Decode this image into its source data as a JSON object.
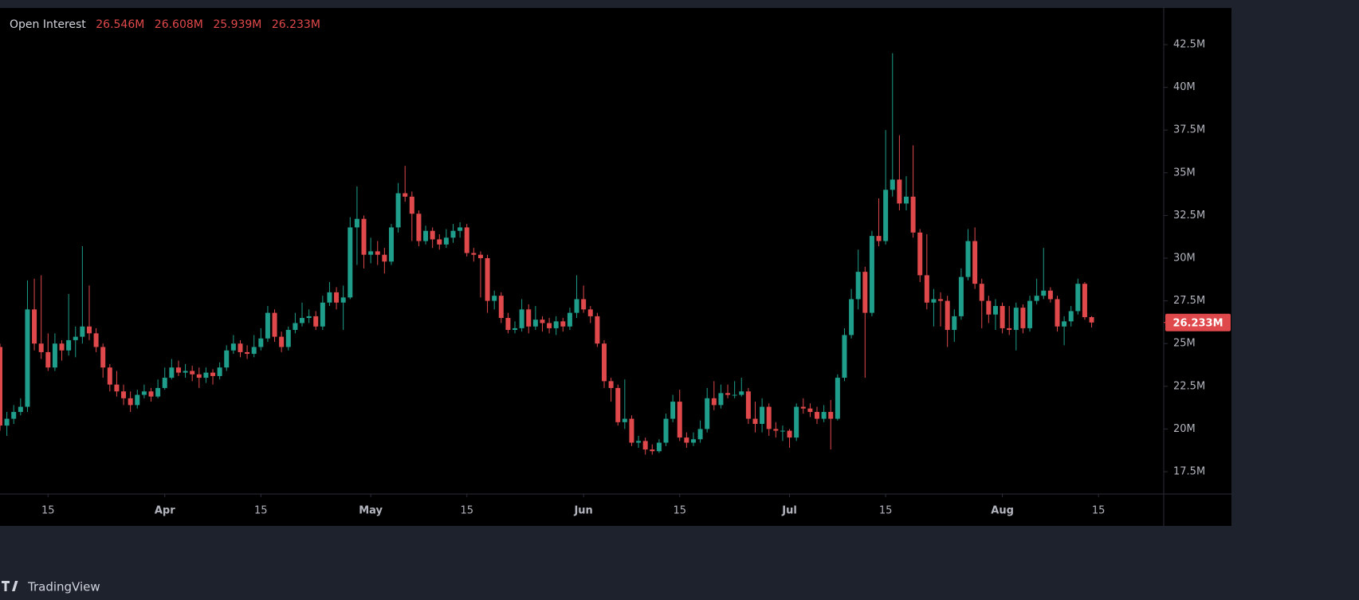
{
  "chart_data": {
    "type": "candlestick",
    "title": "Open Interest",
    "ohlc_labels": [
      "26.546M",
      "26.608M",
      "25.939M",
      "26.233M"
    ],
    "last_price_label": "26.233M",
    "watermark": "TradingView",
    "up_color": "#1f9e8b",
    "down_color": "#e0494b",
    "xlim": [
      0,
      169.5
    ],
    "xticks": [
      {
        "value": 7,
        "label": "15"
      },
      {
        "value": 24,
        "label": "Apr"
      },
      {
        "value": 38,
        "label": "15"
      },
      {
        "value": 54,
        "label": "May"
      },
      {
        "value": 68,
        "label": "15"
      },
      {
        "value": 85,
        "label": "Jun"
      },
      {
        "value": 99,
        "label": "15"
      },
      {
        "value": 115,
        "label": "Jul"
      },
      {
        "value": 129,
        "label": "15"
      },
      {
        "value": 146,
        "label": "Aug"
      },
      {
        "value": 160,
        "label": "15"
      }
    ],
    "ylim": [
      16.194,
      44.645
    ],
    "yticks": [
      {
        "value": 17.5,
        "label": "17.5M"
      },
      {
        "value": 20,
        "label": "20M"
      },
      {
        "value": 22.5,
        "label": "22.5M"
      },
      {
        "value": 25,
        "label": "25M"
      },
      {
        "value": 27.5,
        "label": "27.5M"
      },
      {
        "value": 30,
        "label": "30M"
      },
      {
        "value": 32.5,
        "label": "32.5M"
      },
      {
        "value": 35,
        "label": "35M"
      },
      {
        "value": 37.5,
        "label": "37.5M"
      },
      {
        "value": 40,
        "label": "40M"
      },
      {
        "value": 42.5,
        "label": "42.5M"
      }
    ],
    "open": [
      24.8,
      20.2,
      20.6,
      21.0,
      21.3,
      27.0,
      25.0,
      24.5,
      23.6,
      25.0,
      24.6,
      25.2,
      25.4,
      26.0,
      25.6,
      24.8,
      23.6,
      22.6,
      22.2,
      21.8,
      21.4,
      22.0,
      22.2,
      21.9,
      22.4,
      23.0,
      23.6,
      23.3,
      23.4,
      23.2,
      23.0,
      23.3,
      23.1,
      23.6,
      24.6,
      25.0,
      24.5,
      24.4,
      24.8,
      25.3,
      26.8,
      25.4,
      24.8,
      25.8,
      26.2,
      26.5,
      26.6,
      26.0,
      27.4,
      28.0,
      27.4,
      27.7,
      31.8,
      32.3,
      30.2,
      30.4,
      30.2,
      29.8,
      31.8,
      33.8,
      33.6,
      32.6,
      31.0,
      31.6,
      31.1,
      30.8,
      31.2,
      31.6,
      31.8,
      30.3,
      30.2,
      30.0,
      27.5,
      27.8,
      26.5,
      25.8,
      25.9,
      27.0,
      26.0,
      26.4,
      26.2,
      25.9,
      26.3,
      26.0,
      26.8,
      27.6,
      27.0,
      26.6,
      25.0,
      22.8,
      22.4,
      20.4,
      20.6,
      19.2,
      19.3,
      18.8,
      18.7,
      19.2,
      20.6,
      21.6,
      19.5,
      19.2,
      19.4,
      20.0,
      21.8,
      21.4,
      22.1,
      22.0,
      22.0,
      22.2,
      20.6,
      20.3,
      21.3,
      20.0,
      19.9,
      19.9,
      19.5,
      21.3,
      21.2,
      21.0,
      20.6,
      21.0,
      20.6,
      23.0,
      25.5,
      27.6,
      29.2,
      26.8,
      31.3,
      31.0,
      34.0,
      34.6,
      33.2,
      33.6,
      31.5,
      29.0,
      27.4,
      27.6,
      27.5,
      25.8,
      26.6,
      28.9,
      31.0,
      28.5,
      27.5,
      26.7,
      27.2,
      25.9,
      25.8,
      27.1,
      25.9,
      27.5,
      27.8,
      28.1,
      27.6,
      26.0,
      26.3,
      26.9,
      28.5,
      26.546
    ],
    "high": [
      25.0,
      21.0,
      21.4,
      21.8,
      28.7,
      28.8,
      29.0,
      25.6,
      25.6,
      25.2,
      27.9,
      26.0,
      30.7,
      28.4,
      25.9,
      25.0,
      23.8,
      23.4,
      22.6,
      22.2,
      22.3,
      22.6,
      22.4,
      22.9,
      23.6,
      24.1,
      24.0,
      23.8,
      23.7,
      23.6,
      23.6,
      23.5,
      23.9,
      24.9,
      25.5,
      25.2,
      24.9,
      25.5,
      25.9,
      27.2,
      27.0,
      25.7,
      26.0,
      26.8,
      27.4,
      27.0,
      26.9,
      27.8,
      28.6,
      28.3,
      28.4,
      32.4,
      34.2,
      32.5,
      31.2,
      31.0,
      30.6,
      32.0,
      34.4,
      35.4,
      33.9,
      32.8,
      31.9,
      31.8,
      31.4,
      31.7,
      32.0,
      32.1,
      32.0,
      30.6,
      30.4,
      30.2,
      28.1,
      28.0,
      26.8,
      26.3,
      27.6,
      27.3,
      27.2,
      26.6,
      26.5,
      26.6,
      26.5,
      27.1,
      29.0,
      28.4,
      27.2,
      26.8,
      25.2,
      23.0,
      22.6,
      22.9,
      20.8,
      19.6,
      19.5,
      19.1,
      19.4,
      20.9,
      22.0,
      22.3,
      19.8,
      19.8,
      20.5,
      22.4,
      22.8,
      22.6,
      22.6,
      22.8,
      23.0,
      22.4,
      21.6,
      21.8,
      21.5,
      20.4,
      20.2,
      20.0,
      21.5,
      21.8,
      21.5,
      21.3,
      21.4,
      21.7,
      23.2,
      25.9,
      28.2,
      30.5,
      29.5,
      31.6,
      33.5,
      37.5,
      42.0,
      37.2,
      34.8,
      36.6,
      31.7,
      31.4,
      28.2,
      28.0,
      27.8,
      27.0,
      29.4,
      31.7,
      31.8,
      28.8,
      27.8,
      27.6,
      27.4,
      27.2,
      27.4,
      27.3,
      27.8,
      28.8,
      30.6,
      28.3,
      27.8,
      26.6,
      27.2,
      28.8,
      28.6,
      26.608
    ],
    "low": [
      19.9,
      19.6,
      20.3,
      20.8,
      21.0,
      24.6,
      24.1,
      23.4,
      23.4,
      24.0,
      24.3,
      24.2,
      25.0,
      25.2,
      24.5,
      23.0,
      22.2,
      21.9,
      21.4,
      21.0,
      21.2,
      21.8,
      21.6,
      21.8,
      22.3,
      22.9,
      23.1,
      23.0,
      22.8,
      22.4,
      22.7,
      22.6,
      22.9,
      23.4,
      24.4,
      24.2,
      24.1,
      24.2,
      24.6,
      25.1,
      25.1,
      24.5,
      24.6,
      25.6,
      26.0,
      26.2,
      25.8,
      25.8,
      27.2,
      27.0,
      25.8,
      27.6,
      29.6,
      29.4,
      29.7,
      29.6,
      29.1,
      29.6,
      31.5,
      33.3,
      31.0,
      30.7,
      30.8,
      30.6,
      30.5,
      30.6,
      30.9,
      31.2,
      30.1,
      29.8,
      27.7,
      26.8,
      27.0,
      26.2,
      25.6,
      25.6,
      25.7,
      25.6,
      25.8,
      25.7,
      25.6,
      25.5,
      25.7,
      25.8,
      26.5,
      26.8,
      26.2,
      24.8,
      22.4,
      21.6,
      20.2,
      20.0,
      19.0,
      18.9,
      18.5,
      18.5,
      18.6,
      19.0,
      20.4,
      19.3,
      18.9,
      19.0,
      19.2,
      19.8,
      21.1,
      21.2,
      21.8,
      21.8,
      21.9,
      20.3,
      19.8,
      19.8,
      19.6,
      19.5,
      19.3,
      18.9,
      19.3,
      20.9,
      20.7,
      20.3,
      20.4,
      18.8,
      20.5,
      22.8,
      25.3,
      27.0,
      23.0,
      26.6,
      30.7,
      30.8,
      33.6,
      32.8,
      32.8,
      31.2,
      28.6,
      27.0,
      26.0,
      26.0,
      24.8,
      25.1,
      26.4,
      28.7,
      28.2,
      25.9,
      26.2,
      25.8,
      25.6,
      25.5,
      24.6,
      25.6,
      25.7,
      27.3,
      27.6,
      27.4,
      25.7,
      24.9,
      26.0,
      26.7,
      26.4,
      25.939
    ],
    "close": [
      20.2,
      20.6,
      21.0,
      21.3,
      27.0,
      25.0,
      24.5,
      23.6,
      25.0,
      24.6,
      25.2,
      25.4,
      26.0,
      25.6,
      24.8,
      23.6,
      22.6,
      22.2,
      21.8,
      21.4,
      22.0,
      22.2,
      21.9,
      22.4,
      23.0,
      23.6,
      23.3,
      23.4,
      23.2,
      23.0,
      23.3,
      23.1,
      23.6,
      24.6,
      25.0,
      24.5,
      24.4,
      24.8,
      25.3,
      26.8,
      25.4,
      24.8,
      25.8,
      26.2,
      26.5,
      26.6,
      26.0,
      27.4,
      28.0,
      27.4,
      27.7,
      31.8,
      32.3,
      30.2,
      30.4,
      30.2,
      29.8,
      31.8,
      33.8,
      33.6,
      32.6,
      31.0,
      31.6,
      31.1,
      30.8,
      31.2,
      31.6,
      31.8,
      30.3,
      30.2,
      30.0,
      27.5,
      27.8,
      26.5,
      25.8,
      25.9,
      27.0,
      26.0,
      26.4,
      26.2,
      25.9,
      26.3,
      26.0,
      26.8,
      27.6,
      27.0,
      26.6,
      25.0,
      22.8,
      22.4,
      20.4,
      20.6,
      19.2,
      19.3,
      18.8,
      18.7,
      19.2,
      20.6,
      21.6,
      19.5,
      19.2,
      19.4,
      20.0,
      21.8,
      21.4,
      22.1,
      22.0,
      22.0,
      22.2,
      20.6,
      20.3,
      21.3,
      20.0,
      19.9,
      19.9,
      19.5,
      21.3,
      21.2,
      21.0,
      20.6,
      21.0,
      20.6,
      23.0,
      25.5,
      27.6,
      29.2,
      26.8,
      31.3,
      31.0,
      34.0,
      34.6,
      33.2,
      33.6,
      31.5,
      29.0,
      27.4,
      27.6,
      27.5,
      25.8,
      26.6,
      28.9,
      31.0,
      28.5,
      27.5,
      26.7,
      27.2,
      25.9,
      25.8,
      27.1,
      25.9,
      27.5,
      27.8,
      28.1,
      27.6,
      26.0,
      26.3,
      26.9,
      28.5,
      26.546,
      26.233
    ]
  }
}
